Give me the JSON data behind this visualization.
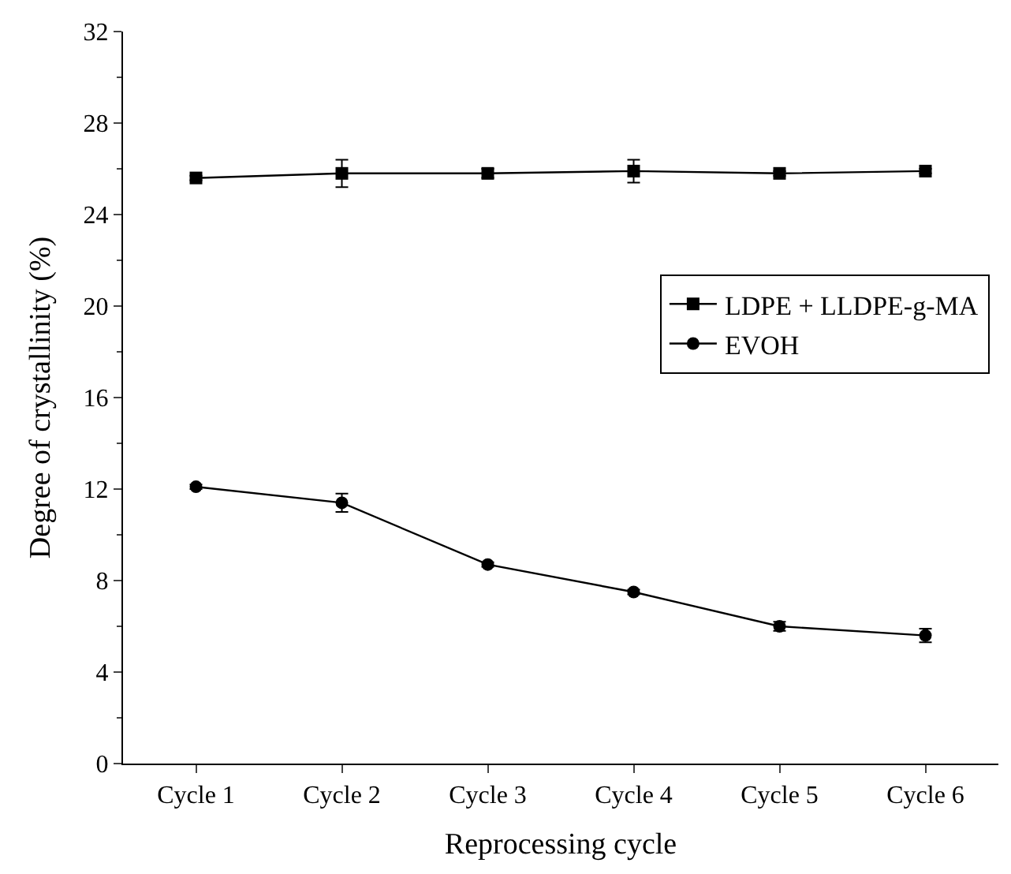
{
  "chart_data": {
    "type": "line",
    "xlabel": "Reprocessing cycle",
    "ylabel": "Degree of crystallinity (%)",
    "categories": [
      "Cycle 1",
      "Cycle 2",
      "Cycle 3",
      "Cycle 4",
      "Cycle 5",
      "Cycle 6"
    ],
    "series": [
      {
        "name": "LDPE + LLDPE-g-MA",
        "color": "#000000",
        "marker": "square",
        "values": [
          25.6,
          25.8,
          25.8,
          25.9,
          25.8,
          25.9
        ],
        "errors": [
          0.1,
          0.6,
          0.2,
          0.5,
          0.1,
          0.1
        ]
      },
      {
        "name": "EVOH",
        "color": "#000000",
        "marker": "circle",
        "values": [
          12.1,
          11.4,
          8.7,
          7.5,
          6.0,
          5.6
        ],
        "errors": [
          0.1,
          0.4,
          0.1,
          0.1,
          0.2,
          0.3
        ]
      }
    ],
    "ylim": [
      0,
      32
    ],
    "yticks": [
      0,
      4,
      8,
      12,
      16,
      20,
      24,
      28,
      32
    ],
    "legend": "right",
    "line_style": "solid"
  }
}
